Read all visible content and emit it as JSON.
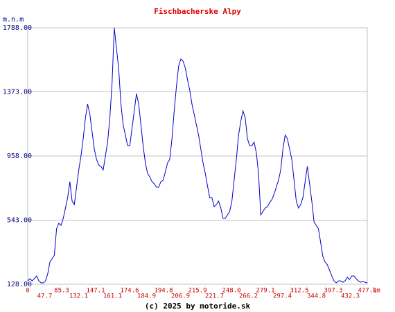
{
  "chart_data": {
    "type": "line",
    "title": "Fischbacherske Alpy",
    "y_label": "m.n.m",
    "x_unit": "km",
    "footer": "(c) 2025 by motoride.sk",
    "x_tick_labels": [
      "0",
      "47.7",
      "85.3",
      "132.1",
      "147.1",
      "161.1",
      "174.6",
      "184.9",
      "194.8",
      "206.9",
      "215.9",
      "221.7",
      "248.0",
      "266.2",
      "279.1",
      "297.4",
      "312.5",
      "344.8",
      "397.3",
      "432.3",
      "477.1"
    ],
    "ylim": [
      128,
      1788
    ],
    "yticks": [
      {
        "value": 128,
        "label": "128.00"
      },
      {
        "value": 543,
        "label": "543.00"
      },
      {
        "value": 958,
        "label": "958.00"
      },
      {
        "value": 1373,
        "label": "1373.00"
      },
      {
        "value": 1788,
        "label": "1788.00"
      }
    ],
    "grid": true,
    "color": "#0000cc",
    "values": [
      150,
      164,
      150,
      164,
      182,
      150,
      137,
      137,
      150,
      195,
      272,
      294,
      316,
      487,
      523,
      509,
      554,
      621,
      689,
      792,
      666,
      644,
      756,
      868,
      958,
      1070,
      1205,
      1294,
      1227,
      1115,
      1003,
      936,
      900,
      891,
      868,
      958,
      1048,
      1205,
      1429,
      1788,
      1653,
      1519,
      1294,
      1160,
      1093,
      1025,
      1025,
      1137,
      1250,
      1362,
      1294,
      1160,
      1025,
      913,
      846,
      823,
      792,
      778,
      756,
      756,
      792,
      801,
      855,
      913,
      936,
      1070,
      1250,
      1407,
      1541,
      1586,
      1572,
      1528,
      1451,
      1384,
      1294,
      1227,
      1160,
      1093,
      1003,
      913,
      846,
      765,
      689,
      689,
      630,
      644,
      666,
      621,
      554,
      554,
      577,
      599,
      666,
      801,
      936,
      1093,
      1182,
      1250,
      1205,
      1070,
      1025,
      1025,
      1048,
      980,
      846,
      577,
      599,
      621,
      630,
      657,
      675,
      711,
      756,
      801,
      868,
      1003,
      1093,
      1070,
      1003,
      936,
      801,
      666,
      621,
      644,
      689,
      792,
      891,
      778,
      666,
      532,
      509,
      487,
      397,
      307,
      272,
      254,
      218,
      182,
      150,
      137,
      150,
      150,
      141,
      150,
      173,
      159,
      182,
      182,
      164,
      150,
      141,
      146,
      141,
      137
    ]
  }
}
